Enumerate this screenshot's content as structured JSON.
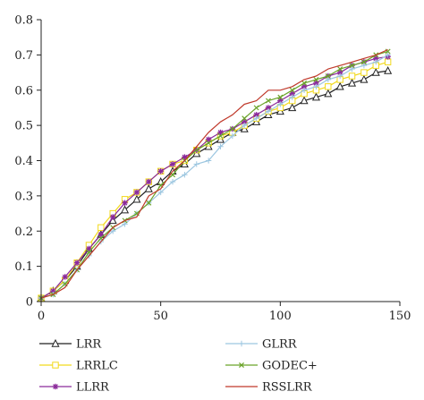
{
  "chart_data": {
    "type": "line",
    "title": "",
    "xlabel": "",
    "ylabel": "",
    "xlim": [
      0,
      150
    ],
    "ylim": [
      0,
      0.8
    ],
    "xticks": [
      0,
      50,
      100,
      150
    ],
    "yticks": [
      0,
      0.1,
      0.2,
      0.3,
      0.4,
      0.5,
      0.6,
      0.7,
      0.8
    ],
    "grid": false,
    "legend_position": "bottom",
    "x": [
      0,
      5,
      10,
      15,
      20,
      25,
      30,
      35,
      40,
      45,
      50,
      55,
      60,
      65,
      70,
      75,
      80,
      85,
      90,
      95,
      100,
      105,
      110,
      115,
      120,
      125,
      130,
      135,
      140,
      145
    ],
    "series": [
      {
        "name": "LRR",
        "color": "#222222",
        "marker": "triangle",
        "values": [
          0.01,
          0.03,
          0.06,
          0.1,
          0.15,
          0.19,
          0.23,
          0.26,
          0.29,
          0.32,
          0.34,
          0.37,
          0.39,
          0.42,
          0.44,
          0.46,
          0.48,
          0.49,
          0.51,
          0.53,
          0.54,
          0.55,
          0.57,
          0.58,
          0.59,
          0.61,
          0.62,
          0.63,
          0.65,
          0.655
        ]
      },
      {
        "name": "LRRLC",
        "color": "#f2d91c",
        "marker": "square",
        "values": [
          0.01,
          0.03,
          0.06,
          0.11,
          0.16,
          0.21,
          0.25,
          0.29,
          0.31,
          0.34,
          0.37,
          0.39,
          0.4,
          0.43,
          0.45,
          0.47,
          0.48,
          0.5,
          0.52,
          0.54,
          0.55,
          0.57,
          0.59,
          0.6,
          0.61,
          0.63,
          0.64,
          0.65,
          0.67,
          0.68
        ]
      },
      {
        "name": "LLRR",
        "color": "#8b2a9a",
        "marker": "star",
        "values": [
          0.01,
          0.03,
          0.07,
          0.11,
          0.15,
          0.19,
          0.24,
          0.28,
          0.31,
          0.34,
          0.37,
          0.39,
          0.41,
          0.43,
          0.46,
          0.48,
          0.49,
          0.51,
          0.53,
          0.55,
          0.57,
          0.59,
          0.61,
          0.62,
          0.64,
          0.65,
          0.67,
          0.68,
          0.69,
          0.695
        ]
      },
      {
        "name": "GLRR",
        "color": "#9cc6e0",
        "marker": "plus",
        "values": [
          0.01,
          0.02,
          0.05,
          0.09,
          0.13,
          0.17,
          0.2,
          0.22,
          0.25,
          0.28,
          0.31,
          0.34,
          0.36,
          0.39,
          0.4,
          0.44,
          0.47,
          0.5,
          0.52,
          0.54,
          0.56,
          0.58,
          0.6,
          0.61,
          0.63,
          0.64,
          0.66,
          0.67,
          0.68,
          0.7
        ]
      },
      {
        "name": "GODEC+",
        "color": "#6aa329",
        "marker": "x",
        "values": [
          0.01,
          0.02,
          0.05,
          0.09,
          0.14,
          0.18,
          0.21,
          0.23,
          0.25,
          0.28,
          0.33,
          0.36,
          0.4,
          0.43,
          0.45,
          0.47,
          0.49,
          0.52,
          0.55,
          0.57,
          0.58,
          0.6,
          0.62,
          0.63,
          0.64,
          0.66,
          0.67,
          0.68,
          0.7,
          0.71
        ]
      },
      {
        "name": "RSSLRR",
        "color": "#c0392b",
        "marker": "none",
        "values": [
          0.01,
          0.02,
          0.04,
          0.09,
          0.13,
          0.17,
          0.21,
          0.23,
          0.24,
          0.3,
          0.32,
          0.37,
          0.4,
          0.44,
          0.48,
          0.51,
          0.53,
          0.56,
          0.57,
          0.6,
          0.6,
          0.61,
          0.63,
          0.64,
          0.66,
          0.67,
          0.68,
          0.69,
          0.7,
          0.715
        ]
      }
    ]
  }
}
